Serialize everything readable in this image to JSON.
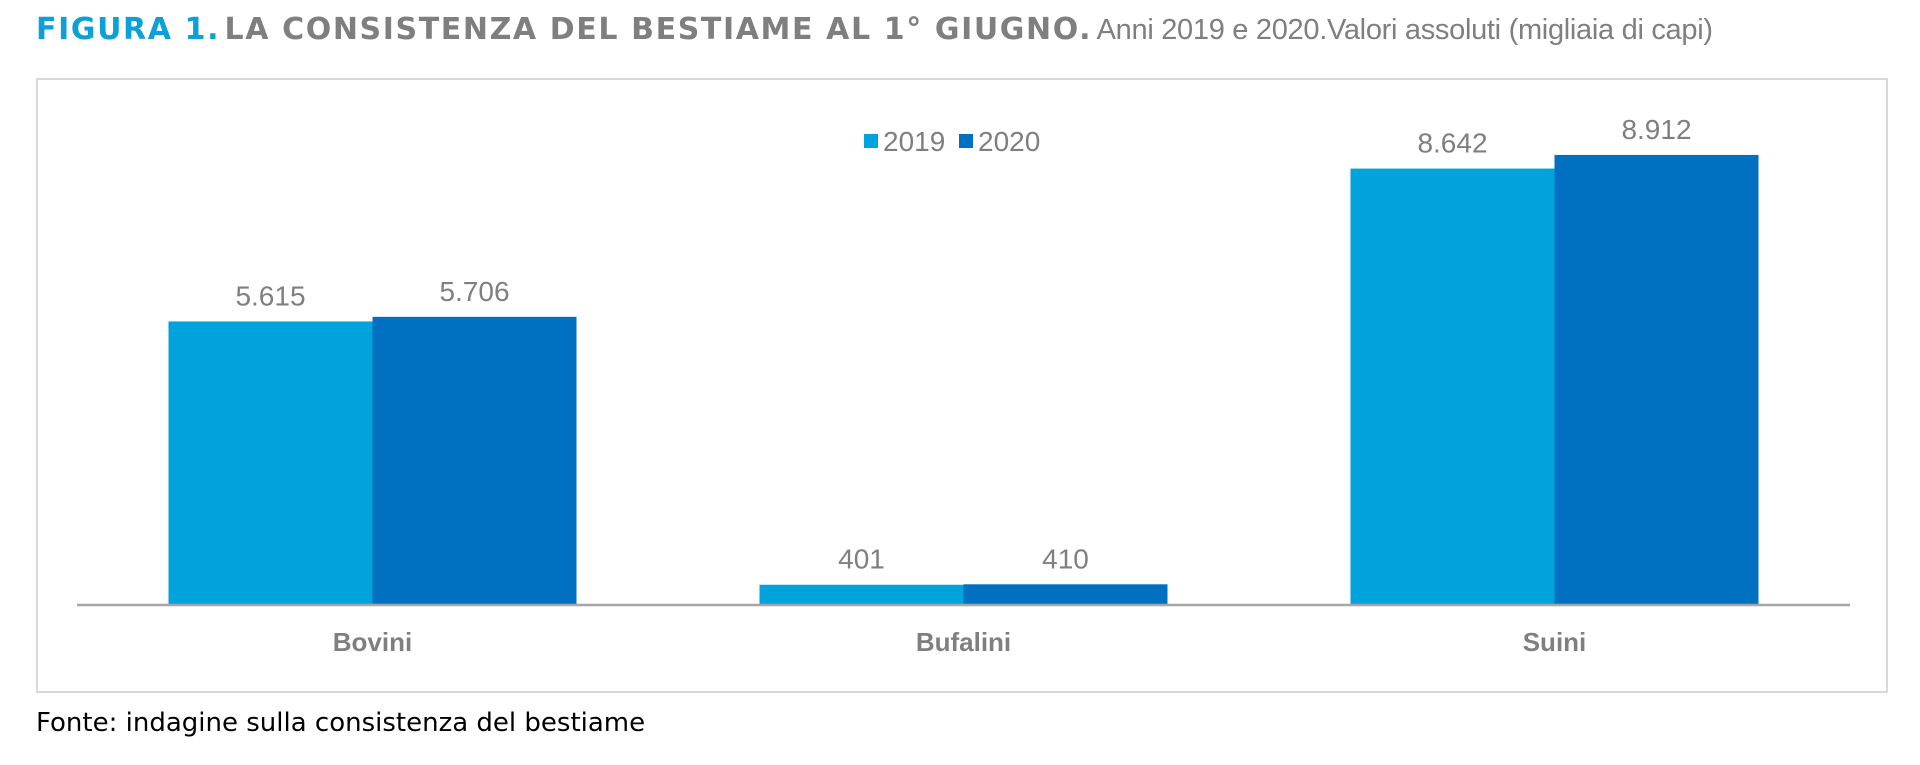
{
  "figure": {
    "label": "FIGURA 1.",
    "title": "LA CONSISTENZA DEL BESTIAME AL 1° GIUGNO.",
    "subtitle": "Anni 2019 e 2020.Valori assoluti (migliaia di capi)",
    "source": "Fonte: indagine sulla consistenza del bestiame"
  },
  "chart_data": {
    "type": "bar",
    "categories": [
      "Bovini",
      "Bufalini",
      "Suini"
    ],
    "series": [
      {
        "name": "2019",
        "color": "#00a3dc",
        "values": [
          5615,
          401,
          8642
        ],
        "labels": [
          "5.615",
          "401",
          "8.642"
        ]
      },
      {
        "name": "2020",
        "color": "#0070c0",
        "values": [
          5706,
          410,
          8912
        ],
        "labels": [
          "5.706",
          "410",
          "8.912"
        ]
      }
    ],
    "title": "",
    "xlabel": "",
    "ylabel": "",
    "ylim": [
      0,
      10000
    ],
    "grid": false,
    "legend": "top-center",
    "axis_color": "#a6a6a6"
  }
}
